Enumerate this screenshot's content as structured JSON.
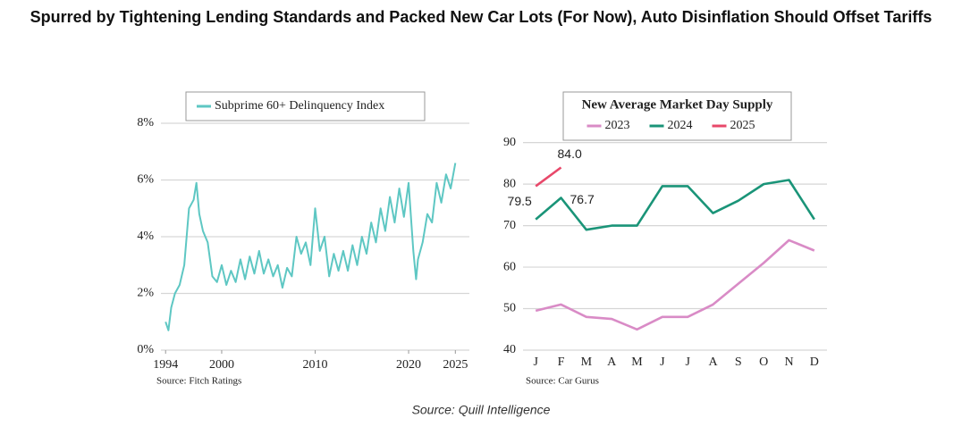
{
  "title": "Spurred by Tightening Lending Standards and Packed New Car Lots (For Now), Auto Disinflation Should Offset Tariffs",
  "source": "Source: Quill Intelligence",
  "chart_data": [
    {
      "type": "line",
      "x": [
        1994.0,
        1994.3,
        1994.6,
        1995.0,
        1995.5,
        1996.0,
        1996.5,
        1997.0,
        1997.3,
        1997.6,
        1998.0,
        1998.5,
        1999.0,
        1999.5,
        2000.0,
        2000.5,
        2001.0,
        2001.5,
        2002.0,
        2002.5,
        2003.0,
        2003.5,
        2004.0,
        2004.5,
        2005.0,
        2005.5,
        2006.0,
        2006.5,
        2007.0,
        2007.5,
        2008.0,
        2008.5,
        2009.0,
        2009.5,
        2010.0,
        2010.5,
        2011.0,
        2011.5,
        2012.0,
        2012.5,
        2013.0,
        2013.5,
        2014.0,
        2014.5,
        2015.0,
        2015.5,
        2016.0,
        2016.5,
        2017.0,
        2017.5,
        2018.0,
        2018.5,
        2019.0,
        2019.5,
        2020.0,
        2020.5,
        2020.8,
        2021.0,
        2021.5,
        2022.0,
        2022.5,
        2023.0,
        2023.5,
        2024.0,
        2024.5,
        2025.0
      ],
      "series": [
        {
          "name": "Subprime 60+ Delinquency Index",
          "color": "#5ec7c3",
          "values": [
            1.0,
            0.7,
            1.5,
            2.0,
            2.3,
            3.0,
            5.0,
            5.3,
            5.9,
            4.8,
            4.2,
            3.8,
            2.6,
            2.4,
            3.0,
            2.3,
            2.8,
            2.4,
            3.2,
            2.5,
            3.3,
            2.7,
            3.5,
            2.7,
            3.2,
            2.6,
            3.0,
            2.2,
            2.9,
            2.6,
            4.0,
            3.4,
            3.8,
            3.0,
            5.0,
            3.5,
            4.0,
            2.6,
            3.4,
            2.8,
            3.5,
            2.8,
            3.7,
            3.0,
            4.0,
            3.4,
            4.5,
            3.8,
            5.0,
            4.2,
            5.4,
            4.5,
            5.7,
            4.7,
            5.9,
            3.5,
            2.5,
            3.2,
            3.8,
            4.8,
            4.5,
            5.9,
            5.2,
            6.2,
            5.7,
            6.6
          ]
        }
      ],
      "xlim": [
        1993.5,
        2026.5
      ],
      "xticks": [
        1994,
        2000,
        2010,
        2020,
        2025
      ],
      "ylim": [
        0,
        8
      ],
      "yticks": [
        {
          "value": 0,
          "label": "0%"
        },
        {
          "value": 2,
          "label": "2%"
        },
        {
          "value": 4,
          "label": "4%"
        },
        {
          "value": 6,
          "label": "6%"
        },
        {
          "value": 8,
          "label": "8%"
        }
      ],
      "grid": true,
      "source": "Source: Fitch Ratings"
    },
    {
      "type": "line",
      "title": "New Average Market Day Supply",
      "categories": [
        "J",
        "F",
        "M",
        "A",
        "M",
        "J",
        "J",
        "A",
        "S",
        "O",
        "N",
        "D"
      ],
      "series": [
        {
          "name": "2023",
          "color": "#d98bc6",
          "values": [
            49.5,
            51,
            48,
            47.5,
            45,
            48,
            48,
            51,
            56,
            61,
            66.5,
            64
          ]
        },
        {
          "name": "2024",
          "color": "#1a9478",
          "values": [
            71.5,
            76.7,
            69,
            70,
            70,
            79.5,
            79.5,
            73,
            76,
            80,
            81,
            71.5
          ],
          "value_labels": [
            null,
            "76.7",
            null,
            null,
            null,
            null,
            null,
            null,
            null,
            null,
            null,
            null
          ]
        },
        {
          "name": "2025",
          "color": "#e8486a",
          "values": [
            79.5,
            84.0,
            null,
            null,
            null,
            null,
            null,
            null,
            null,
            null,
            null,
            null
          ],
          "value_labels": [
            "79.5",
            "84.0",
            null,
            null,
            null,
            null,
            null,
            null,
            null,
            null,
            null,
            null
          ]
        }
      ],
      "ylim": [
        40,
        91
      ],
      "yticks": [
        40,
        50,
        60,
        70,
        80,
        90
      ],
      "grid": true,
      "source": "Source: Car Gurus"
    }
  ]
}
